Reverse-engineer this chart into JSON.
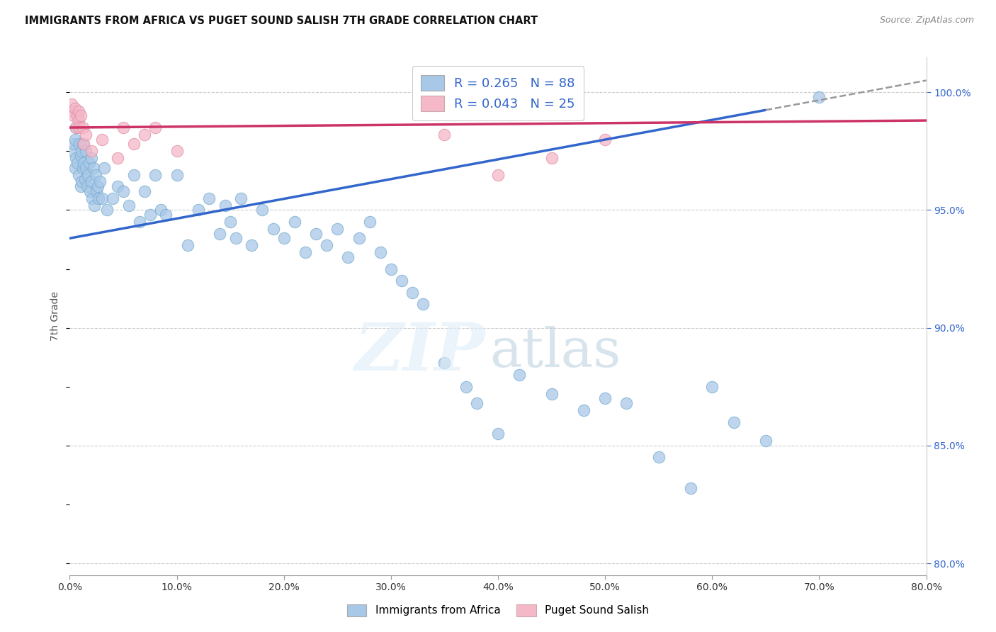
{
  "title": "IMMIGRANTS FROM AFRICA VS PUGET SOUND SALISH 7TH GRADE CORRELATION CHART",
  "source": "Source: ZipAtlas.com",
  "ylabel": "7th Grade",
  "xlim": [
    0.0,
    80.0
  ],
  "ylim": [
    79.5,
    101.5
  ],
  "legend_blue_label": "R = 0.265   N = 88",
  "legend_pink_label": "R = 0.043   N = 25",
  "legend_blue_label2": "Immigrants from Africa",
  "legend_pink_label2": "Puget Sound Salish",
  "blue_color": "#a8c8e8",
  "blue_edge_color": "#7aaed0",
  "pink_color": "#f4b8c8",
  "pink_edge_color": "#e090a8",
  "trend_blue_color": "#3366cc",
  "trend_pink_color": "#cc3366",
  "trend_dash_color": "#999999",
  "watermark_zip_color": "#ddeeff",
  "watermark_atlas_color": "#bbccdd",
  "blue_x": [
    0.3,
    0.4,
    0.5,
    0.5,
    0.6,
    0.6,
    0.7,
    0.8,
    0.9,
    1.0,
    1.0,
    1.1,
    1.1,
    1.2,
    1.2,
    1.3,
    1.4,
    1.5,
    1.5,
    1.6,
    1.7,
    1.8,
    1.9,
    2.0,
    2.0,
    2.1,
    2.2,
    2.3,
    2.4,
    2.5,
    2.6,
    2.7,
    2.8,
    3.0,
    3.2,
    3.5,
    4.0,
    4.5,
    5.0,
    5.5,
    6.0,
    6.5,
    7.0,
    7.5,
    8.0,
    8.5,
    9.0,
    10.0,
    11.0,
    12.0,
    13.0,
    14.0,
    14.5,
    15.0,
    15.5,
    16.0,
    17.0,
    18.0,
    19.0,
    20.0,
    21.0,
    22.0,
    23.0,
    24.0,
    25.0,
    26.0,
    27.0,
    28.0,
    29.0,
    30.0,
    31.0,
    32.0,
    33.0,
    35.0,
    37.0,
    38.0,
    40.0,
    42.0,
    45.0,
    48.0,
    50.0,
    52.0,
    55.0,
    58.0,
    60.0,
    62.0,
    65.0,
    70.0
  ],
  "blue_y": [
    97.5,
    97.8,
    98.0,
    96.8,
    97.2,
    98.5,
    97.0,
    96.5,
    97.8,
    97.3,
    96.0,
    97.5,
    96.2,
    97.8,
    96.8,
    97.0,
    96.3,
    96.8,
    97.5,
    96.0,
    96.5,
    97.0,
    95.8,
    96.2,
    97.2,
    95.5,
    96.8,
    95.2,
    96.5,
    95.8,
    96.0,
    95.5,
    96.2,
    95.5,
    96.8,
    95.0,
    95.5,
    96.0,
    95.8,
    95.2,
    96.5,
    94.5,
    95.8,
    94.8,
    96.5,
    95.0,
    94.8,
    96.5,
    93.5,
    95.0,
    95.5,
    94.0,
    95.2,
    94.5,
    93.8,
    95.5,
    93.5,
    95.0,
    94.2,
    93.8,
    94.5,
    93.2,
    94.0,
    93.5,
    94.2,
    93.0,
    93.8,
    94.5,
    93.2,
    92.5,
    92.0,
    91.5,
    91.0,
    88.5,
    87.5,
    86.8,
    85.5,
    88.0,
    87.2,
    86.5,
    87.0,
    86.8,
    84.5,
    83.2,
    87.5,
    86.0,
    85.2,
    99.8
  ],
  "pink_x": [
    0.2,
    0.3,
    0.4,
    0.5,
    0.6,
    0.7,
    0.8,
    0.8,
    0.9,
    1.0,
    1.2,
    1.3,
    1.5,
    2.0,
    3.0,
    4.5,
    5.0,
    6.0,
    7.0,
    8.0,
    10.0,
    35.0,
    40.0,
    45.0,
    50.0
  ],
  "pink_y": [
    99.5,
    99.2,
    99.0,
    99.3,
    98.5,
    99.0,
    99.2,
    98.8,
    98.5,
    99.0,
    98.5,
    97.8,
    98.2,
    97.5,
    98.0,
    97.2,
    98.5,
    97.8,
    98.2,
    98.5,
    97.5,
    98.2,
    96.5,
    97.2,
    98.0
  ],
  "blue_trend_x0": 0.0,
  "blue_trend_y0": 93.8,
  "blue_trend_x1": 80.0,
  "blue_trend_y1": 100.5,
  "blue_solid_end": 65.0,
  "pink_trend_x0": 0.0,
  "pink_trend_y0": 98.5,
  "pink_trend_x1": 80.0,
  "pink_trend_y1": 98.8
}
